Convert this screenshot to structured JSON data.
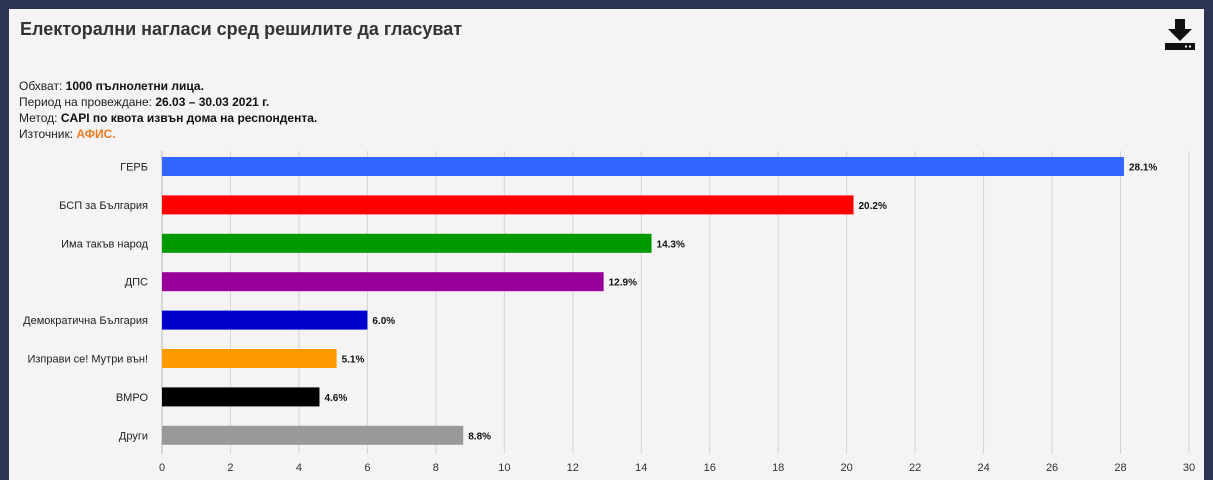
{
  "title": "Електорални нагласи сред решилите да гласуват",
  "download_icon": "download-icon",
  "meta": {
    "scope_label": "Обхват:",
    "scope_value": "1000 пълнолетни лица.",
    "period_label": "Период на провеждане:",
    "period_value": "26.03 – 30.03 2021 г.",
    "method_label": "Метод:",
    "method_value": "CAPI по квота извън дома на респондента.",
    "source_label": "Източник:",
    "source_value": "АФИС."
  },
  "colors": {
    "source": "#f07c22",
    "grid": "#d4d4d4"
  },
  "chart_data": {
    "type": "bar",
    "orientation": "horizontal",
    "categories": [
      "ГЕРБ",
      "БСП за България",
      "Има такъв народ",
      "ДПС",
      "Демократична България",
      "Изправи се! Мутри вън!",
      "ВМРО",
      "Други"
    ],
    "values": [
      28.1,
      20.2,
      14.3,
      12.9,
      6.0,
      5.1,
      4.6,
      8.8
    ],
    "data_labels": [
      "28.1%",
      "20.2%",
      "14.3%",
      "12.9%",
      "6.0%",
      "5.1%",
      "4.6%",
      "8.8%"
    ],
    "colors": [
      "#3366ff",
      "#ff0000",
      "#009900",
      "#990099",
      "#0000cc",
      "#ff9900",
      "#000000",
      "#999999"
    ],
    "xlim": [
      0,
      30
    ],
    "xticks": [
      0,
      2,
      4,
      6,
      8,
      10,
      12,
      14,
      16,
      18,
      20,
      22,
      24,
      26,
      28,
      30
    ],
    "grid": true,
    "legend": false
  }
}
